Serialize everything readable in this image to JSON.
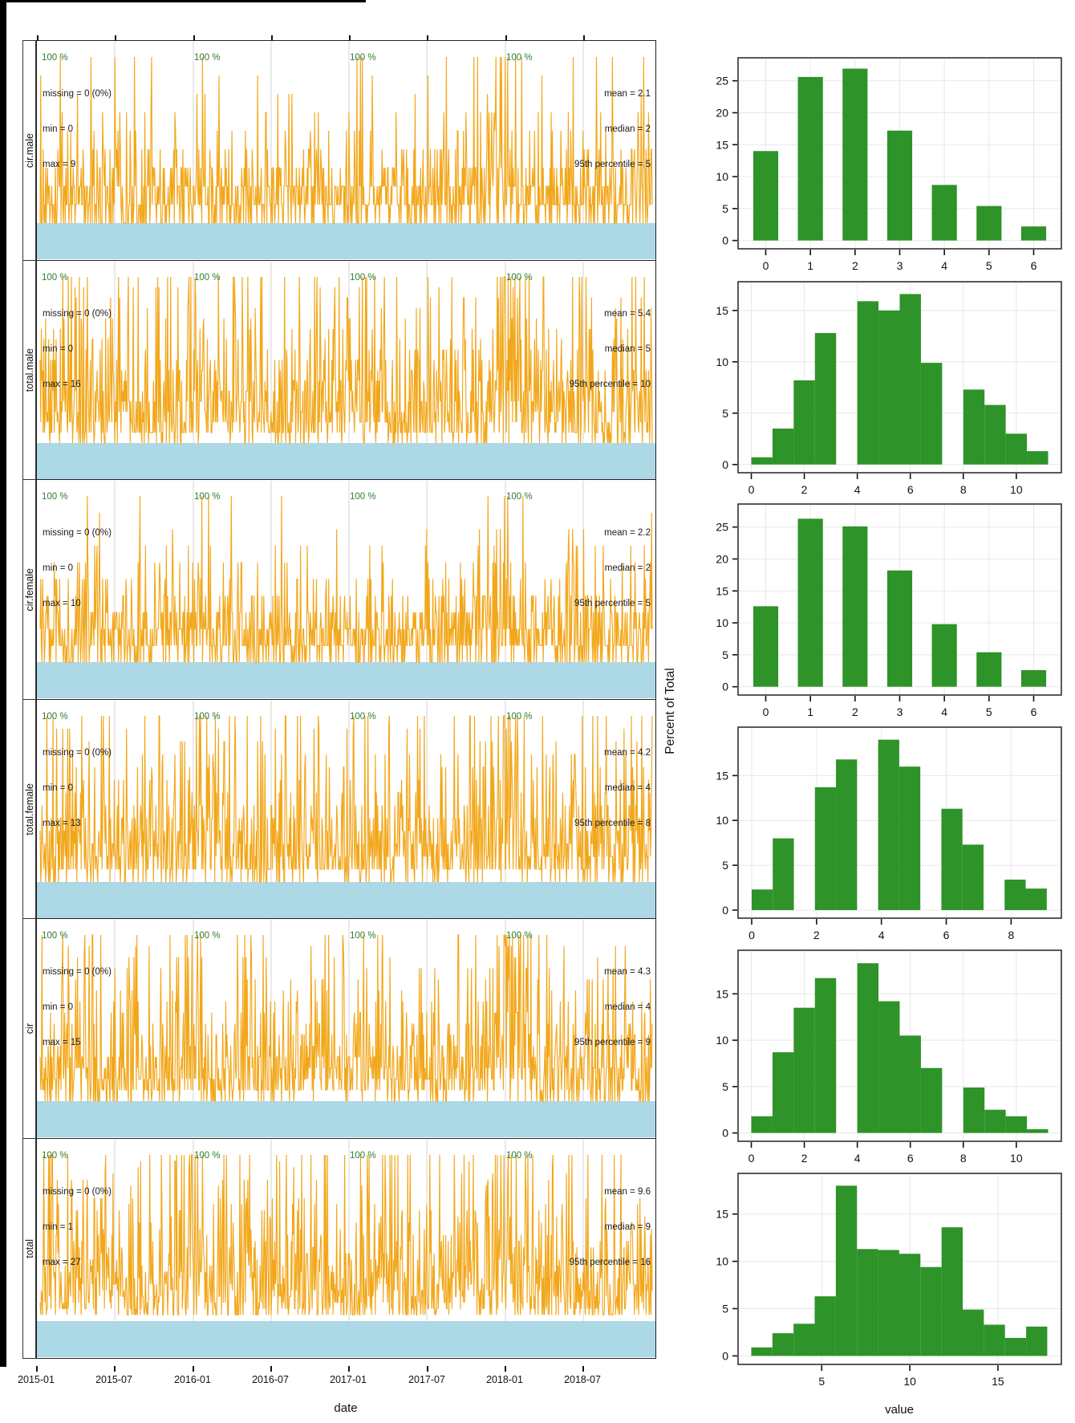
{
  "ts": {
    "percent_label": "100 %",
    "x_axis": {
      "ticks": [
        "2015-01",
        "2015-07",
        "2016-01",
        "2016-07",
        "2017-01",
        "2017-07",
        "2018-01",
        "2018-07"
      ],
      "label": "date"
    },
    "rows": [
      {
        "label": "cir.male",
        "missing": "missing = 0 (0%)",
        "min": "min = 0",
        "max": "max = 9",
        "mean": "mean = 2.1",
        "median": "median = 2",
        "p95": "95th percentile = 5"
      },
      {
        "label": "total.male",
        "missing": "missing = 0 (0%)",
        "min": "min = 0",
        "max": "max = 16",
        "mean": "mean = 5.4",
        "median": "median = 5",
        "p95": "95th percentile = 10"
      },
      {
        "label": "cir.female",
        "missing": "missing = 0 (0%)",
        "min": "min = 0",
        "max": "max = 10",
        "mean": "mean = 2.2",
        "median": "median = 2",
        "p95": "95th percentile = 5"
      },
      {
        "label": "total.female",
        "missing": "missing = 0 (0%)",
        "min": "min = 0",
        "max": "max = 13",
        "mean": "mean = 4.2",
        "median": "median = 4",
        "p95": "95th percentile = 8"
      },
      {
        "label": "cir",
        "missing": "missing = 0 (0%)",
        "min": "min = 0",
        "max": "max = 15",
        "mean": "mean = 4.3",
        "median": "median = 4",
        "p95": "95th percentile = 9"
      },
      {
        "label": "total",
        "missing": "missing = 0 (0%)",
        "min": "min = 1",
        "max": "max = 27",
        "mean": "mean = 9.6",
        "median": "median = 9",
        "p95": "95th percentile = 16"
      }
    ]
  },
  "hist": {
    "y_label": "Percent of Total",
    "x_label": "value"
  },
  "colors": {
    "series_orange": "#F2A71B",
    "band_blue": "#ADD8E6",
    "percent_green": "#2e7d32",
    "bar_green": "#2E9328",
    "grid_gray": "#DBDBDB",
    "hist_grid": "#E8E8E8",
    "border": "#222222"
  },
  "chart_data": {
    "time_series": [
      {
        "type": "line",
        "name": "cir.male",
        "x_range": [
          "2015-01",
          "2018-12"
        ],
        "x_ticks": [
          "2015-01",
          "2015-07",
          "2016-01",
          "2016-07",
          "2017-01",
          "2017-07",
          "2018-01",
          "2018-07"
        ],
        "xlabel": "date",
        "y_min": 0,
        "y_max": 9,
        "mean": 2.1,
        "median": 2,
        "p95": 5,
        "missing_pct": 0,
        "percent_observed_per_year": [
          100,
          100,
          100,
          100
        ],
        "note": "daily noisy count series, spike cluster near 2018-01"
      },
      {
        "type": "line",
        "name": "total.male",
        "x_range": [
          "2015-01",
          "2018-12"
        ],
        "y_min": 0,
        "y_max": 16,
        "mean": 5.4,
        "median": 5,
        "p95": 10,
        "missing_pct": 0,
        "percent_observed_per_year": [
          100,
          100,
          100,
          100
        ]
      },
      {
        "type": "line",
        "name": "cir.female",
        "x_range": [
          "2015-01",
          "2018-12"
        ],
        "y_min": 0,
        "y_max": 10,
        "mean": 2.2,
        "median": 2,
        "p95": 5,
        "missing_pct": 0,
        "percent_observed_per_year": [
          100,
          100,
          100,
          100
        ]
      },
      {
        "type": "line",
        "name": "total.female",
        "x_range": [
          "2015-01",
          "2018-12"
        ],
        "y_min": 0,
        "y_max": 13,
        "mean": 4.2,
        "median": 4,
        "p95": 8,
        "missing_pct": 0,
        "percent_observed_per_year": [
          100,
          100,
          100,
          100
        ]
      },
      {
        "type": "line",
        "name": "cir",
        "x_range": [
          "2015-01",
          "2018-12"
        ],
        "y_min": 0,
        "y_max": 15,
        "mean": 4.3,
        "median": 4,
        "p95": 9,
        "missing_pct": 0,
        "percent_observed_per_year": [
          100,
          100,
          100,
          100
        ]
      },
      {
        "type": "line",
        "name": "total",
        "x_range": [
          "2015-01",
          "2018-12"
        ],
        "y_min": 1,
        "y_max": 27,
        "mean": 9.6,
        "median": 9,
        "p95": 16,
        "missing_pct": 0,
        "percent_observed_per_year": [
          100,
          100,
          100,
          100
        ]
      }
    ],
    "histograms": [
      {
        "type": "bar",
        "name": "cir.male",
        "ylabel": "Percent of Total",
        "xlim": [
          -0.62,
          6.62
        ],
        "ylim": [
          -1.3,
          28.6
        ],
        "xticks": [
          0,
          1,
          2,
          3,
          4,
          5,
          6
        ],
        "yticks": [
          0,
          5,
          10,
          15,
          20,
          25
        ],
        "bars": [
          [
            -0.28,
            0.56,
            14.0
          ],
          [
            0.72,
            0.56,
            25.6
          ],
          [
            1.72,
            0.56,
            26.9
          ],
          [
            2.72,
            0.56,
            17.2
          ],
          [
            3.72,
            0.56,
            8.7
          ],
          [
            4.72,
            0.56,
            5.4
          ],
          [
            5.72,
            0.56,
            2.2
          ]
        ]
      },
      {
        "type": "bar",
        "name": "total.male",
        "ylabel": "Percent of Total",
        "xlim": [
          -0.5,
          11.7
        ],
        "ylim": [
          -0.8,
          17.8
        ],
        "xticks": [
          0,
          2,
          4,
          6,
          8,
          10
        ],
        "yticks": [
          0,
          5,
          10,
          15
        ],
        "bars": [
          [
            0,
            0.8,
            0.7
          ],
          [
            0.8,
            0.8,
            3.5
          ],
          [
            1.6,
            0.8,
            8.2
          ],
          [
            2.4,
            0.8,
            12.8
          ],
          [
            4.0,
            0.8,
            15.9
          ],
          [
            4.8,
            0.8,
            15.0
          ],
          [
            5.6,
            0.8,
            16.6
          ],
          [
            6.4,
            0.8,
            9.9
          ],
          [
            8.0,
            0.8,
            7.3
          ],
          [
            8.8,
            0.8,
            5.8
          ],
          [
            9.6,
            0.8,
            3.0
          ],
          [
            10.4,
            0.8,
            1.3
          ]
        ]
      },
      {
        "type": "bar",
        "name": "cir.female",
        "ylabel": "Percent of Total",
        "xlim": [
          -0.62,
          6.62
        ],
        "ylim": [
          -1.3,
          28.6
        ],
        "xticks": [
          0,
          1,
          2,
          3,
          4,
          5,
          6
        ],
        "yticks": [
          0,
          5,
          10,
          15,
          20,
          25
        ],
        "bars": [
          [
            -0.28,
            0.56,
            12.6
          ],
          [
            0.72,
            0.56,
            26.3
          ],
          [
            1.72,
            0.56,
            25.1
          ],
          [
            2.72,
            0.56,
            18.2
          ],
          [
            3.72,
            0.56,
            9.8
          ],
          [
            4.72,
            0.56,
            5.4
          ],
          [
            5.72,
            0.56,
            2.6
          ]
        ]
      },
      {
        "type": "bar",
        "name": "total.female",
        "ylabel": "Percent of Total",
        "xlim": [
          -0.42,
          9.55
        ],
        "ylim": [
          -0.9,
          20.4
        ],
        "xticks": [
          0,
          2,
          4,
          6,
          8
        ],
        "yticks": [
          0,
          5,
          10,
          15
        ],
        "bars": [
          [
            0,
            0.65,
            2.3
          ],
          [
            0.65,
            0.65,
            8.0
          ],
          [
            1.95,
            0.65,
            13.7
          ],
          [
            2.6,
            0.65,
            16.8
          ],
          [
            3.9,
            0.65,
            19.0
          ],
          [
            4.55,
            0.65,
            16.0
          ],
          [
            5.85,
            0.65,
            11.3
          ],
          [
            6.5,
            0.65,
            7.3
          ],
          [
            7.8,
            0.65,
            3.4
          ],
          [
            8.45,
            0.65,
            2.4
          ]
        ]
      },
      {
        "type": "bar",
        "name": "cir",
        "ylabel": "Percent of Total",
        "xlim": [
          -0.5,
          11.7
        ],
        "ylim": [
          -0.9,
          19.7
        ],
        "xticks": [
          0,
          2,
          4,
          6,
          8,
          10
        ],
        "yticks": [
          0,
          5,
          10,
          15
        ],
        "bars": [
          [
            0,
            0.8,
            1.8
          ],
          [
            0.8,
            0.8,
            8.7
          ],
          [
            1.6,
            0.8,
            13.5
          ],
          [
            2.4,
            0.8,
            16.7
          ],
          [
            4.0,
            0.8,
            18.3
          ],
          [
            4.8,
            0.8,
            14.2
          ],
          [
            5.6,
            0.8,
            10.5
          ],
          [
            6.4,
            0.8,
            7.0
          ],
          [
            8.0,
            0.8,
            4.9
          ],
          [
            8.8,
            0.8,
            2.5
          ],
          [
            9.6,
            0.8,
            1.8
          ],
          [
            10.4,
            0.8,
            0.4
          ]
        ]
      },
      {
        "type": "bar",
        "name": "total",
        "xlabel": "value",
        "ylabel": "Percent of Total",
        "xlim": [
          0.25,
          18.6
        ],
        "ylim": [
          -0.9,
          19.3
        ],
        "xticks": [
          5,
          10,
          15
        ],
        "yticks": [
          0,
          5,
          10,
          15
        ],
        "bars": [
          [
            1.0,
            1.2,
            0.9
          ],
          [
            2.2,
            1.2,
            2.4
          ],
          [
            3.4,
            1.2,
            3.4
          ],
          [
            4.6,
            1.2,
            6.3
          ],
          [
            5.8,
            1.2,
            18.0
          ],
          [
            7.0,
            1.2,
            11.3
          ],
          [
            8.2,
            1.2,
            11.2
          ],
          [
            9.4,
            1.2,
            10.8
          ],
          [
            10.6,
            1.2,
            9.4
          ],
          [
            11.8,
            1.2,
            13.6
          ],
          [
            13.0,
            1.2,
            4.9
          ],
          [
            14.2,
            1.2,
            3.3
          ],
          [
            15.4,
            1.2,
            1.9
          ],
          [
            16.6,
            1.2,
            3.1
          ]
        ]
      }
    ]
  }
}
